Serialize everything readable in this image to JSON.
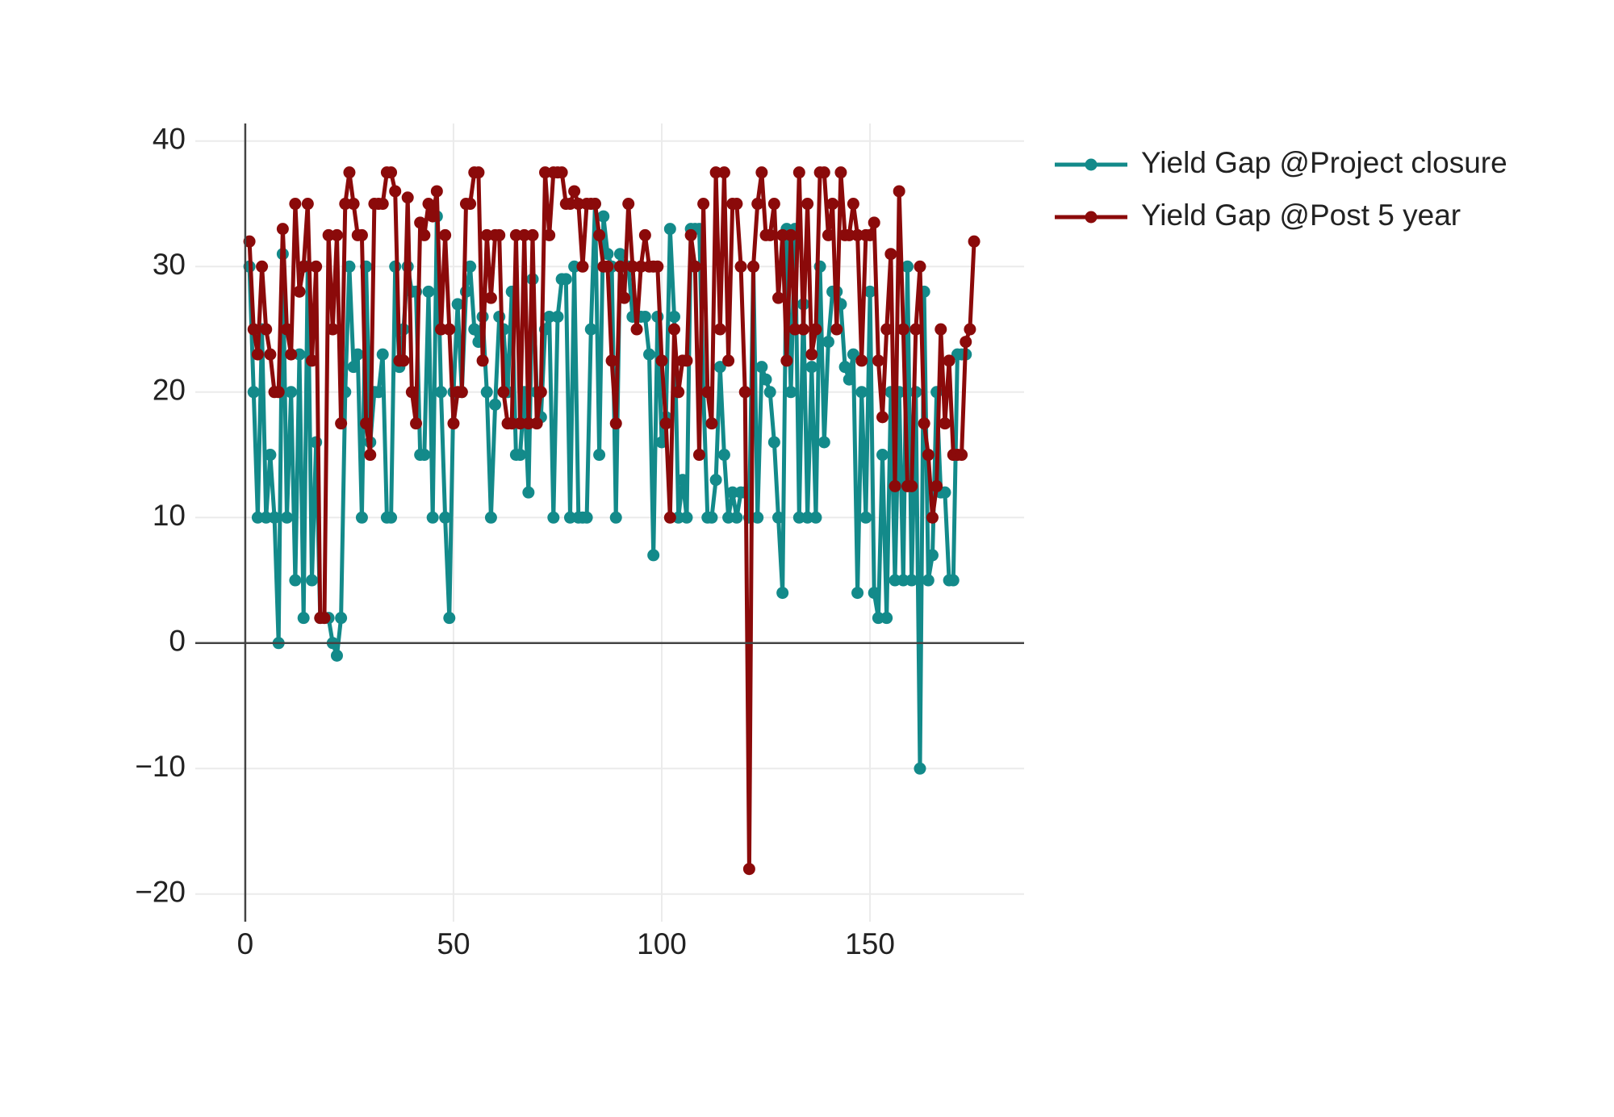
{
  "chart_data": {
    "type": "line",
    "x": [
      1,
      2,
      3,
      4,
      5,
      6,
      7,
      8,
      9,
      10,
      11,
      12,
      13,
      14,
      15,
      16,
      17,
      18,
      19,
      20,
      21,
      22,
      23,
      24,
      25,
      26,
      27,
      28,
      29,
      30,
      31,
      32,
      33,
      34,
      35,
      36,
      37,
      38,
      39,
      40,
      41,
      42,
      43,
      44,
      45,
      46,
      47,
      48,
      49,
      50,
      51,
      52,
      53,
      54,
      55,
      56,
      57,
      58,
      59,
      60,
      61,
      62,
      63,
      64,
      65,
      66,
      67,
      68,
      69,
      70,
      71,
      72,
      73,
      74,
      75,
      76,
      77,
      78,
      79,
      80,
      81,
      82,
      83,
      84,
      85,
      86,
      87,
      88,
      89,
      90,
      91,
      92,
      93,
      94,
      95,
      96,
      97,
      98,
      99,
      100,
      101,
      102,
      103,
      104,
      105,
      106,
      107,
      108,
      109,
      110,
      111,
      112,
      113,
      114,
      115,
      116,
      117,
      118,
      119,
      120,
      121,
      122,
      123,
      124,
      125,
      126,
      127,
      128,
      129,
      130,
      131,
      132,
      133,
      134,
      135,
      136,
      137,
      138,
      139,
      140,
      141,
      142,
      143,
      144,
      145,
      146,
      147,
      148,
      149,
      150,
      151,
      152,
      153,
      154,
      155,
      156,
      157,
      158,
      159,
      160,
      161,
      162,
      163,
      164,
      165,
      166,
      167,
      168,
      169,
      170,
      171,
      172,
      173,
      174,
      175
    ],
    "series": [
      {
        "name": "Yield Gap @Project closure",
        "color": "#138a8a",
        "values": [
          30,
          20,
          10,
          25,
          10,
          15,
          10,
          0,
          31,
          10,
          20,
          5,
          23,
          2,
          30,
          5,
          16,
          2,
          2,
          2,
          0,
          -1,
          2,
          20,
          30,
          22,
          23,
          10,
          30,
          16,
          20,
          20,
          23,
          10,
          10,
          30,
          22,
          25,
          30,
          28,
          28,
          15,
          15,
          28,
          10,
          34,
          20,
          10,
          2,
          20,
          27,
          20,
          28,
          30,
          25,
          24,
          26,
          20,
          10,
          19,
          26,
          25,
          20,
          28,
          15,
          15,
          20,
          12,
          29,
          20,
          18,
          25,
          26,
          10,
          26,
          29,
          29,
          10,
          30,
          10,
          10,
          10,
          25,
          35,
          15,
          34,
          31,
          30,
          10,
          31,
          30,
          30,
          26,
          26,
          26,
          26,
          23,
          7,
          26,
          16,
          18,
          33,
          26,
          10,
          13,
          10,
          33,
          33,
          33,
          20,
          10,
          10,
          13,
          22,
          15,
          10,
          12,
          10,
          12,
          12,
          10,
          30,
          10,
          22,
          21,
          20,
          16,
          10,
          4,
          33,
          20,
          33,
          10,
          27,
          10,
          22,
          10,
          30,
          16,
          24,
          28,
          28,
          27,
          22,
          21,
          23,
          4,
          20,
          10,
          28,
          4,
          2,
          15,
          2,
          20,
          5,
          20,
          5,
          30,
          5,
          20,
          -10,
          28,
          5,
          7,
          20,
          12,
          12,
          5,
          5,
          23,
          23,
          23,
          null,
          null
        ]
      },
      {
        "name": "Yield Gap @Post 5 year",
        "color": "#8b0a0a",
        "values": [
          32,
          25,
          23,
          30,
          25,
          23,
          20,
          20,
          33,
          25,
          23,
          35,
          28,
          30,
          35,
          22.5,
          30,
          2,
          2,
          32.5,
          25,
          32.5,
          17.5,
          35,
          37.5,
          35,
          32.5,
          32.5,
          17.5,
          15,
          35,
          35,
          35,
          37.5,
          37.5,
          36,
          22.5,
          22.5,
          35.5,
          20,
          17.5,
          33.5,
          32.5,
          35,
          34,
          36,
          25,
          32.5,
          25,
          17.5,
          20,
          20,
          35,
          35,
          37.5,
          37.5,
          22.5,
          32.5,
          27.5,
          32.5,
          32.5,
          20,
          17.5,
          17.5,
          32.5,
          17.5,
          32.5,
          17.5,
          32.5,
          17.5,
          20,
          37.5,
          32.5,
          37.5,
          37.5,
          37.5,
          35,
          35,
          36,
          35,
          30,
          35,
          35,
          35,
          32.5,
          30,
          30,
          22.5,
          17.5,
          30,
          27.5,
          35,
          30,
          25,
          30,
          32.5,
          30,
          30,
          30,
          22.5,
          17.5,
          10,
          25,
          20,
          22.5,
          22.5,
          32.5,
          30,
          15,
          35,
          20,
          17.5,
          37.5,
          25,
          37.5,
          22.5,
          35,
          35,
          30,
          20,
          -18,
          30,
          35,
          37.5,
          32.5,
          32.5,
          35,
          27.5,
          32.5,
          22.5,
          32.5,
          25,
          37.5,
          25,
          35,
          23,
          25,
          37.5,
          37.5,
          32.5,
          35,
          25,
          37.5,
          32.5,
          32.5,
          35,
          32.5,
          22.5,
          32.5,
          32.5,
          33.5,
          22.5,
          18,
          25,
          31,
          12.5,
          36,
          25,
          12.5,
          12.5,
          25,
          30,
          17.5,
          15,
          10,
          12.5,
          25,
          17.5,
          22.5,
          15,
          15,
          15,
          24,
          25,
          32
        ]
      }
    ],
    "xlim": [
      -12,
      187
    ],
    "ylim": [
      -22.2,
      41.4
    ],
    "xticks": [
      0,
      50,
      100,
      150
    ],
    "yticks": [
      {
        "value": -20,
        "label": "−20"
      },
      {
        "value": -10,
        "label": "−10"
      },
      0,
      10,
      20,
      30,
      40
    ],
    "grid": true,
    "legend": "outside-right"
  }
}
